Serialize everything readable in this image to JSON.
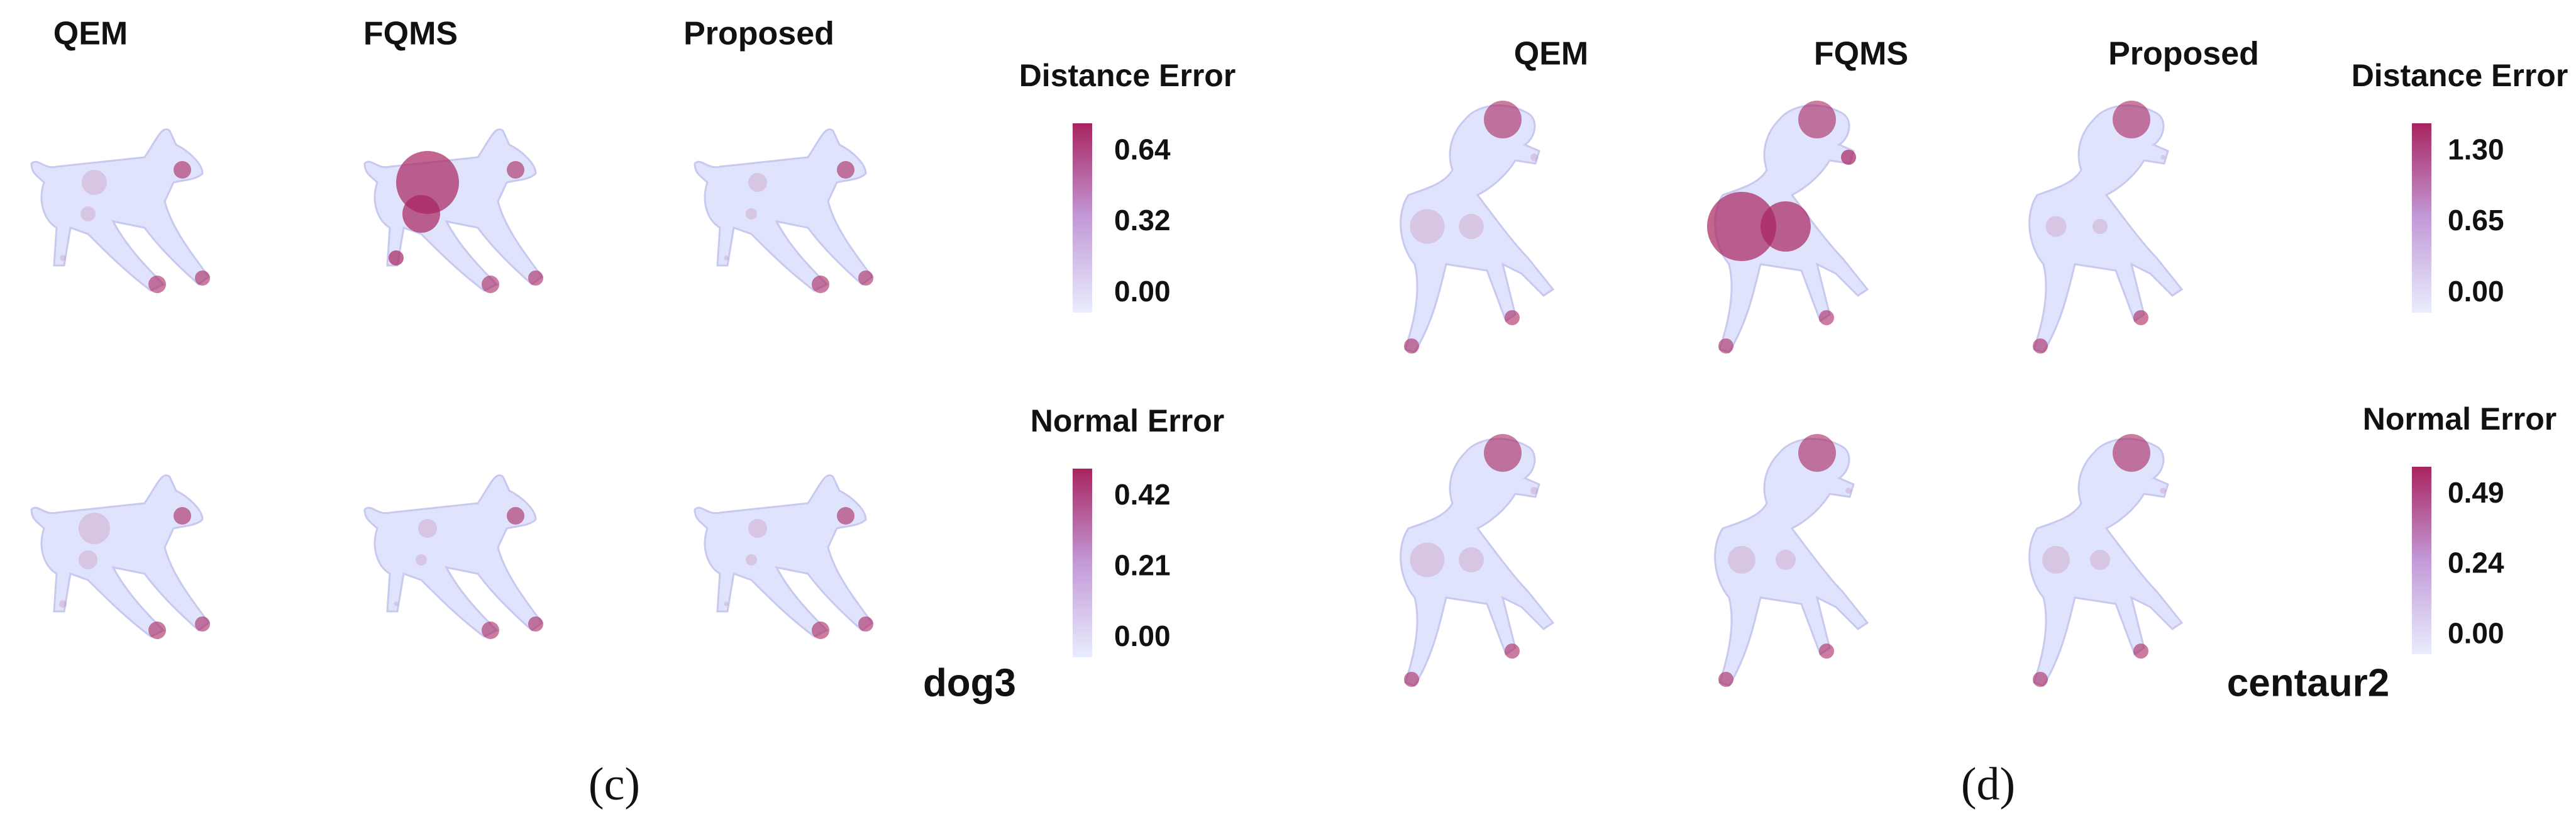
{
  "panels": [
    {
      "label": "(c)",
      "model": "dog3",
      "columns": [
        "QEM",
        "FQMS",
        "Proposed"
      ],
      "colorbars": [
        {
          "title": "Distance Error",
          "ticks": [
            "0.64",
            "0.32",
            "0.00"
          ]
        },
        {
          "title": "Normal Error",
          "ticks": [
            "0.42",
            "0.21",
            "0.00"
          ]
        }
      ]
    },
    {
      "label": "(d)",
      "model": "centaur2",
      "columns": [
        "QEM",
        "FQMS",
        "Proposed"
      ],
      "colorbars": [
        {
          "title": "Distance Error",
          "ticks": [
            "1.30",
            "0.65",
            "0.00"
          ]
        },
        {
          "title": "Normal Error",
          "ticks": [
            "0.49",
            "0.24",
            "0.00"
          ]
        }
      ]
    }
  ]
}
